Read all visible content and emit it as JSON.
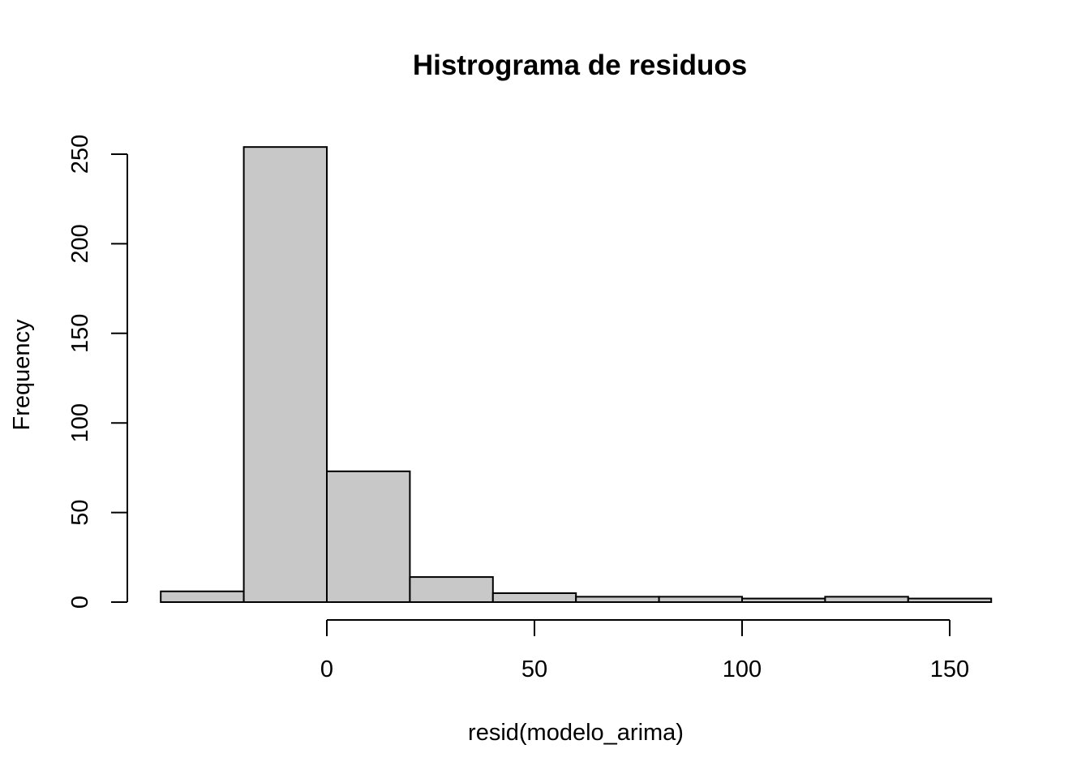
{
  "chart_data": {
    "type": "bar",
    "title": "Histrograma de residuos",
    "xlabel": "resid(modelo_arima)",
    "ylabel": "Frequency",
    "bins": [
      {
        "from": -40,
        "to": -20,
        "count": 6
      },
      {
        "from": -20,
        "to": 0,
        "count": 254
      },
      {
        "from": 0,
        "to": 20,
        "count": 73
      },
      {
        "from": 20,
        "to": 40,
        "count": 14
      },
      {
        "from": 40,
        "to": 60,
        "count": 5
      },
      {
        "from": 60,
        "to": 80,
        "count": 3
      },
      {
        "from": 80,
        "to": 100,
        "count": 3
      },
      {
        "from": 100,
        "to": 120,
        "count": 2
      },
      {
        "from": 120,
        "to": 140,
        "count": 3
      },
      {
        "from": 140,
        "to": 160,
        "count": 2
      }
    ],
    "xticks": [
      0,
      50,
      100,
      150
    ],
    "yticks": [
      0,
      50,
      100,
      150,
      200,
      250
    ],
    "xlim": [
      -48,
      164
    ],
    "ylim": [
      0,
      254
    ],
    "grid": false,
    "colors": {
      "bar_fill": "#c8c8c8",
      "bar_stroke": "#000000"
    }
  }
}
